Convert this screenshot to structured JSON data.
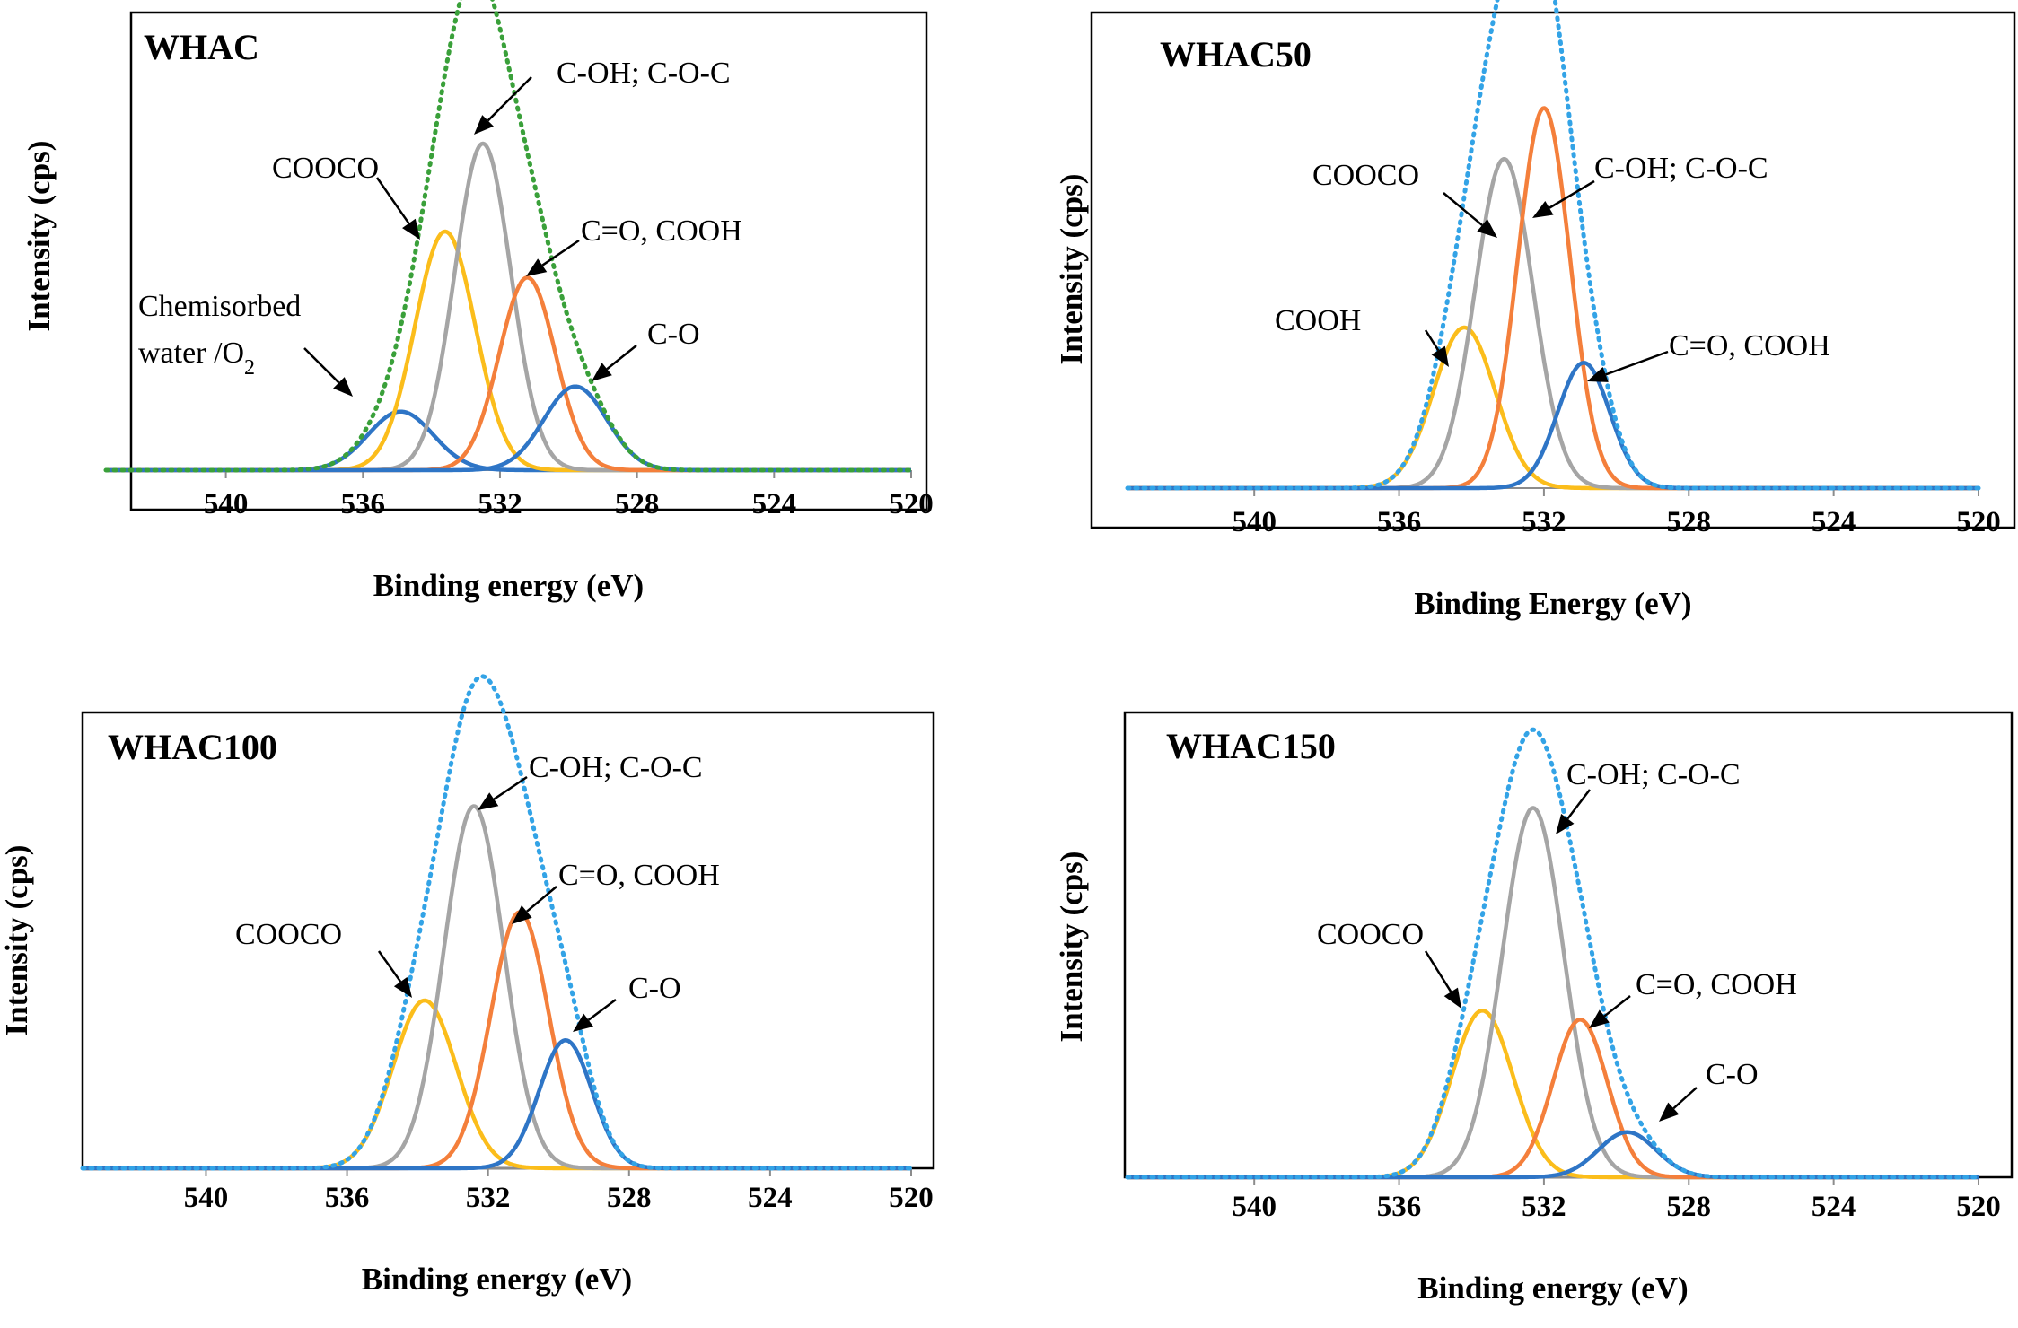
{
  "chart_data": [
    {
      "type": "line",
      "title": "WHAC",
      "xlabel": "Binding energy (eV)",
      "ylabel": "Intensity (cps)",
      "xlim": [
        543.5,
        520
      ],
      "ylim": [
        0,
        1.08
      ],
      "xticks": [
        540,
        536,
        532,
        528,
        524,
        520
      ],
      "xtick_labels": [
        "540",
        "536",
        "532",
        "528",
        "524",
        "520"
      ],
      "envelope": {
        "name": "Envelope",
        "color": "#3aa03a",
        "style": "dotted"
      },
      "series": [
        {
          "name": "Chemisorbed water /O2",
          "color": "#2e75c6",
          "center": 534.9,
          "sigma": 0.95,
          "height": 0.14
        },
        {
          "name": "COOCO",
          "color": "#fbbd1b",
          "center": 533.6,
          "sigma": 0.88,
          "height": 0.57
        },
        {
          "name": "C-OH; C-O-C",
          "color": "#a5a5a5",
          "center": 532.5,
          "sigma": 0.82,
          "height": 0.78
        },
        {
          "name": "C=O, COOH",
          "color": "#f47f3b",
          "center": 531.2,
          "sigma": 0.82,
          "height": 0.46
        },
        {
          "name": "C-O",
          "color": "#2e75c6",
          "center": 529.8,
          "sigma": 0.92,
          "height": 0.2
        }
      ],
      "annotations": [
        {
          "lines": [
            "Chemisorbed",
            "water /O2"
          ]
        },
        {
          "lines": [
            "COOCO"
          ]
        },
        {
          "lines": [
            "C-OH; C-O-C"
          ]
        },
        {
          "lines": [
            "C=O, COOH"
          ]
        },
        {
          "lines": [
            "C-O"
          ]
        }
      ]
    },
    {
      "type": "line",
      "title": "WHAC50",
      "xlabel": "Binding Energy (eV)",
      "ylabel": "Intensity (cps)",
      "xlim": [
        543.5,
        520
      ],
      "ylim": [
        0,
        1.2
      ],
      "xticks": [
        540,
        536,
        532,
        528,
        524,
        520
      ],
      "xtick_labels": [
        "540",
        "536",
        "532",
        "528",
        "524",
        "520"
      ],
      "envelope": {
        "name": "Envelope",
        "color": "#33a3e6",
        "style": "dotted"
      },
      "series": [
        {
          "name": "COOH",
          "color": "#fbbd1b",
          "center": 534.2,
          "sigma": 0.85,
          "height": 0.41
        },
        {
          "name": "COOCO",
          "color": "#a5a5a5",
          "center": 533.1,
          "sigma": 0.8,
          "height": 0.84
        },
        {
          "name": "C-OH; C-O-C",
          "color": "#f47f3b",
          "center": 532.0,
          "sigma": 0.72,
          "height": 0.97
        },
        {
          "name": "C=O, COOH",
          "color": "#2e75c6",
          "center": 530.9,
          "sigma": 0.72,
          "height": 0.32
        }
      ],
      "annotations": [
        {
          "lines": [
            "COOCO"
          ]
        },
        {
          "lines": [
            "C-OH; C-O-C"
          ]
        },
        {
          "lines": [
            "COOH"
          ]
        },
        {
          "lines": [
            "C=O, COOH"
          ]
        }
      ]
    },
    {
      "type": "line",
      "title": "WHAC100",
      "xlabel": "Binding energy (eV)",
      "ylabel": "Intensity (cps)",
      "xlim": [
        543.5,
        520
      ],
      "ylim": [
        0,
        1.02
      ],
      "xticks": [
        540,
        536,
        532,
        528,
        524,
        520
      ],
      "xtick_labels": [
        "540",
        "536",
        "532",
        "528",
        "524",
        "520"
      ],
      "envelope": {
        "name": "Envelope",
        "color": "#33a3e6",
        "style": "dotted"
      },
      "series": [
        {
          "name": "COOCO",
          "color": "#fbbd1b",
          "center": 533.8,
          "sigma": 0.9,
          "height": 0.38
        },
        {
          "name": "C-OH; C-O-C",
          "color": "#a5a5a5",
          "center": 532.4,
          "sigma": 0.85,
          "height": 0.82
        },
        {
          "name": "C=O, COOH",
          "color": "#f47f3b",
          "center": 531.1,
          "sigma": 0.82,
          "height": 0.58
        },
        {
          "name": "C-O",
          "color": "#2e75c6",
          "center": 529.8,
          "sigma": 0.75,
          "height": 0.29
        }
      ],
      "annotations": [
        {
          "lines": [
            "C-OH; C-O-C"
          ]
        },
        {
          "lines": [
            "C=O, COOH"
          ]
        },
        {
          "lines": [
            "COOCO"
          ]
        },
        {
          "lines": [
            "C-O"
          ]
        }
      ]
    },
    {
      "type": "line",
      "title": "WHAC150",
      "xlabel": "Binding energy (eV)",
      "ylabel": "Intensity (cps)",
      "xlim": [
        543.5,
        520
      ],
      "ylim": [
        0,
        1.02
      ],
      "xticks": [
        540,
        536,
        532,
        528,
        524,
        520
      ],
      "xtick_labels": [
        "540",
        "536",
        "532",
        "528",
        "524",
        "520"
      ],
      "envelope": {
        "name": "Envelope",
        "color": "#33a3e6",
        "style": "dotted"
      },
      "series": [
        {
          "name": "COOCO",
          "color": "#fbbd1b",
          "center": 533.7,
          "sigma": 0.85,
          "height": 0.37
        },
        {
          "name": "C-OH; C-O-C",
          "color": "#a5a5a5",
          "center": 532.3,
          "sigma": 0.85,
          "height": 0.82
        },
        {
          "name": "C=O, COOH",
          "color": "#f47f3b",
          "center": 531.0,
          "sigma": 0.75,
          "height": 0.35
        },
        {
          "name": "C-O",
          "color": "#2e75c6",
          "center": 529.7,
          "sigma": 0.8,
          "height": 0.1
        }
      ],
      "annotations": [
        {
          "lines": [
            "C-OH; C-O-C"
          ]
        },
        {
          "lines": [
            "COOCO"
          ]
        },
        {
          "lines": [
            "C=O, COOH"
          ]
        },
        {
          "lines": [
            "C-O"
          ]
        }
      ]
    }
  ]
}
